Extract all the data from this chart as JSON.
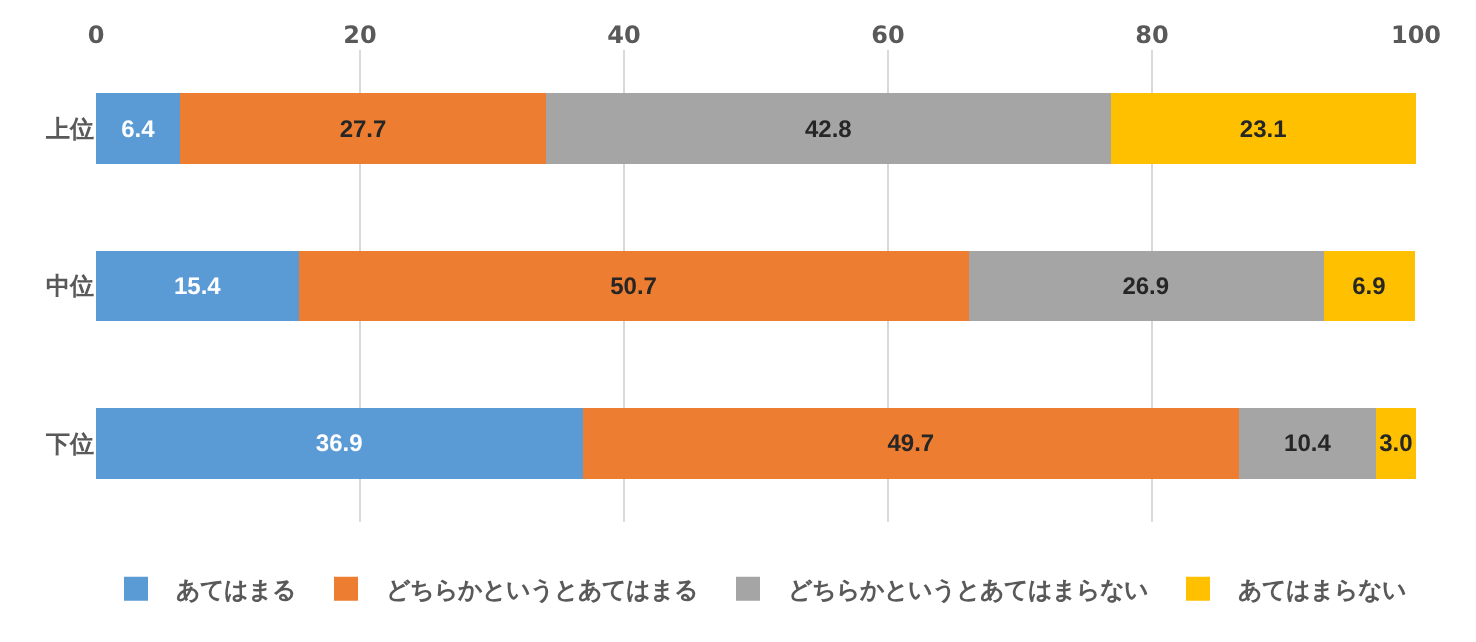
{
  "chart_data": {
    "type": "bar",
    "orientation": "horizontal",
    "stacked": true,
    "categories": [
      "上位",
      "中位",
      "下位"
    ],
    "series": [
      {
        "name": "あてはまる",
        "color": "#5b9bd5",
        "values": [
          6.4,
          15.4,
          36.9
        ],
        "value_labels": [
          "6.4",
          "15.4",
          "36.9"
        ]
      },
      {
        "name": "どちらかというとあてはまる",
        "color": "#ed7d31",
        "values": [
          27.7,
          50.7,
          49.7
        ],
        "value_labels": [
          "27.7",
          "50.7",
          "49.7"
        ]
      },
      {
        "name": "どちらかというとあてはまらない",
        "color": "#a5a5a5",
        "values": [
          42.8,
          26.9,
          10.4
        ],
        "value_labels": [
          "42.8",
          "26.9",
          "10.4"
        ]
      },
      {
        "name": "あてはまらない",
        "color": "#ffc000",
        "values": [
          23.1,
          6.9,
          3.0
        ],
        "value_labels": [
          "23.1",
          "6.9",
          "3.0"
        ]
      }
    ],
    "xlim": [
      0,
      100
    ],
    "xticks": [
      0,
      20,
      40,
      60,
      80,
      100
    ],
    "grid": "x",
    "legend": "bottom"
  }
}
